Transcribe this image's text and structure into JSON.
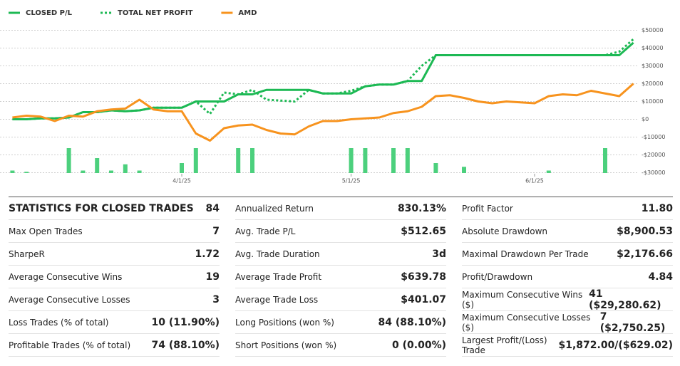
{
  "chart_data": {
    "type": "line",
    "categories": [
      null,
      null,
      null,
      null,
      null,
      null,
      null,
      null,
      null,
      null,
      null,
      null,
      "4/1/25",
      null,
      null,
      null,
      null,
      null,
      null,
      null,
      null,
      null,
      null,
      null,
      "5/1/25",
      null,
      null,
      null,
      null,
      null,
      null,
      null,
      null,
      null,
      null,
      null,
      null,
      "6/1/25",
      null,
      null,
      null,
      null,
      null,
      null,
      null
    ],
    "series": [
      {
        "name": "CLOSED P/L",
        "color": "#1db954",
        "style": "solid",
        "values": [
          0,
          0,
          500,
          500,
          1000,
          4000,
          4000,
          5000,
          4500,
          5000,
          6500,
          6500,
          6500,
          10000,
          10000,
          10000,
          14000,
          14000,
          16500,
          16500,
          16500,
          16500,
          14500,
          14500,
          14500,
          18500,
          19500,
          19500,
          21500,
          21500,
          36000,
          36000,
          36000,
          36000,
          36000,
          36000,
          36000,
          36000,
          36000,
          36000,
          36000,
          36000,
          36000,
          36000,
          43000
        ]
      },
      {
        "name": "TOTAL NET PROFIT",
        "color": "#1db954",
        "style": "dotted",
        "values": [
          0,
          0,
          500,
          500,
          1000,
          4000,
          4000,
          5000,
          4500,
          5000,
          6500,
          6500,
          6500,
          10000,
          3000,
          15000,
          14000,
          16500,
          11000,
          10500,
          10000,
          16500,
          14500,
          14500,
          16000,
          18500,
          19500,
          19500,
          21500,
          30000,
          36000,
          36000,
          36000,
          36000,
          36000,
          36000,
          36000,
          36000,
          36000,
          36000,
          36000,
          36000,
          36000,
          38000,
          45000
        ]
      },
      {
        "name": "AMD",
        "color": "#f7931e",
        "style": "solid",
        "values": [
          1000,
          2000,
          1500,
          -1000,
          2000,
          1500,
          4500,
          5500,
          6000,
          11000,
          5500,
          4500,
          4500,
          -8000,
          -12000,
          -5000,
          -3500,
          -3000,
          -6000,
          -8000,
          -8500,
          -4000,
          -1000,
          -1000,
          0,
          500,
          1000,
          3500,
          4500,
          7000,
          13000,
          13500,
          12000,
          10000,
          9000,
          10000,
          9500,
          9000,
          13000,
          14000,
          13500,
          16000,
          14500,
          13000,
          20000
        ]
      },
      {
        "type": "bar",
        "axis": "y2",
        "color": "#4cd07d",
        "values": [
          10,
          5,
          0,
          0,
          100,
          10,
          60,
          10,
          35,
          10,
          0,
          0,
          40,
          100,
          0,
          0,
          100,
          100,
          0,
          0,
          0,
          0,
          0,
          0,
          100,
          100,
          0,
          100,
          100,
          0,
          40,
          0,
          25,
          0,
          0,
          0,
          0,
          0,
          10,
          0,
          0,
          0,
          100,
          0,
          0
        ]
      }
    ],
    "ylim": [
      -31000,
      53000
    ],
    "yticks": [
      {
        "value": 50000,
        "label": "$50000"
      },
      {
        "value": 40000,
        "label": "$40000"
      },
      {
        "value": 30000,
        "label": "$30000"
      },
      {
        "value": 20000,
        "label": "$20000"
      },
      {
        "value": 10000,
        "label": "$10000"
      },
      {
        "value": 0,
        "label": "$0"
      },
      {
        "value": -10000,
        "label": "-$10000"
      },
      {
        "value": -20000,
        "label": "-$20000"
      },
      {
        "value": -30000,
        "label": "-$30000"
      }
    ],
    "y2lim": [
      0,
      100
    ],
    "grid": true,
    "legend": "top-left"
  },
  "stats": {
    "columns": [
      [
        {
          "label": "STATISTICS FOR CLOSED TRADES",
          "value": "84"
        },
        {
          "label": "Max Open Trades",
          "value": "7"
        },
        {
          "label": "SharpeR",
          "value": "1.72"
        },
        {
          "label": "Average Consecutive Wins",
          "value": "19"
        },
        {
          "label": "Average Consecutive Losses",
          "value": "3"
        },
        {
          "label": "Loss Trades (% of total)",
          "value": "10 (11.90%)"
        },
        {
          "label": "Profitable Trades (% of total)",
          "value": "74 (88.10%)"
        }
      ],
      [
        {
          "label": "Annualized Return",
          "value": "830.13%"
        },
        {
          "label": "Avg. Trade P/L",
          "value": "$512.65"
        },
        {
          "label": "Avg. Trade Duration",
          "value": "3d"
        },
        {
          "label": "Average Trade Profit",
          "value": "$639.78"
        },
        {
          "label": "Average Trade Loss",
          "value": "$401.07"
        },
        {
          "label": "Long Positions (won %)",
          "value": "84 (88.10%)"
        },
        {
          "label": "Short Positions (won %)",
          "value": "0 (0.00%)"
        }
      ],
      [
        {
          "label": "Profit Factor",
          "value": "11.80"
        },
        {
          "label": "Absolute Drawdown",
          "value": "$8,900.53"
        },
        {
          "label": "Maximal Drawdown Per Trade",
          "value": "$2,176.66"
        },
        {
          "label": "Profit/Drawdown",
          "value": "4.84"
        },
        {
          "label": "Maximum Consecutive Wins ($)",
          "value": "41 ($29,280.62)"
        },
        {
          "label": "Maximum Consecutive Losses ($)",
          "value": "7 ($2,750.25)"
        },
        {
          "label": "Largest Profit/(Loss) Trade",
          "value": "$1,872.00/($629.02)"
        }
      ]
    ]
  }
}
